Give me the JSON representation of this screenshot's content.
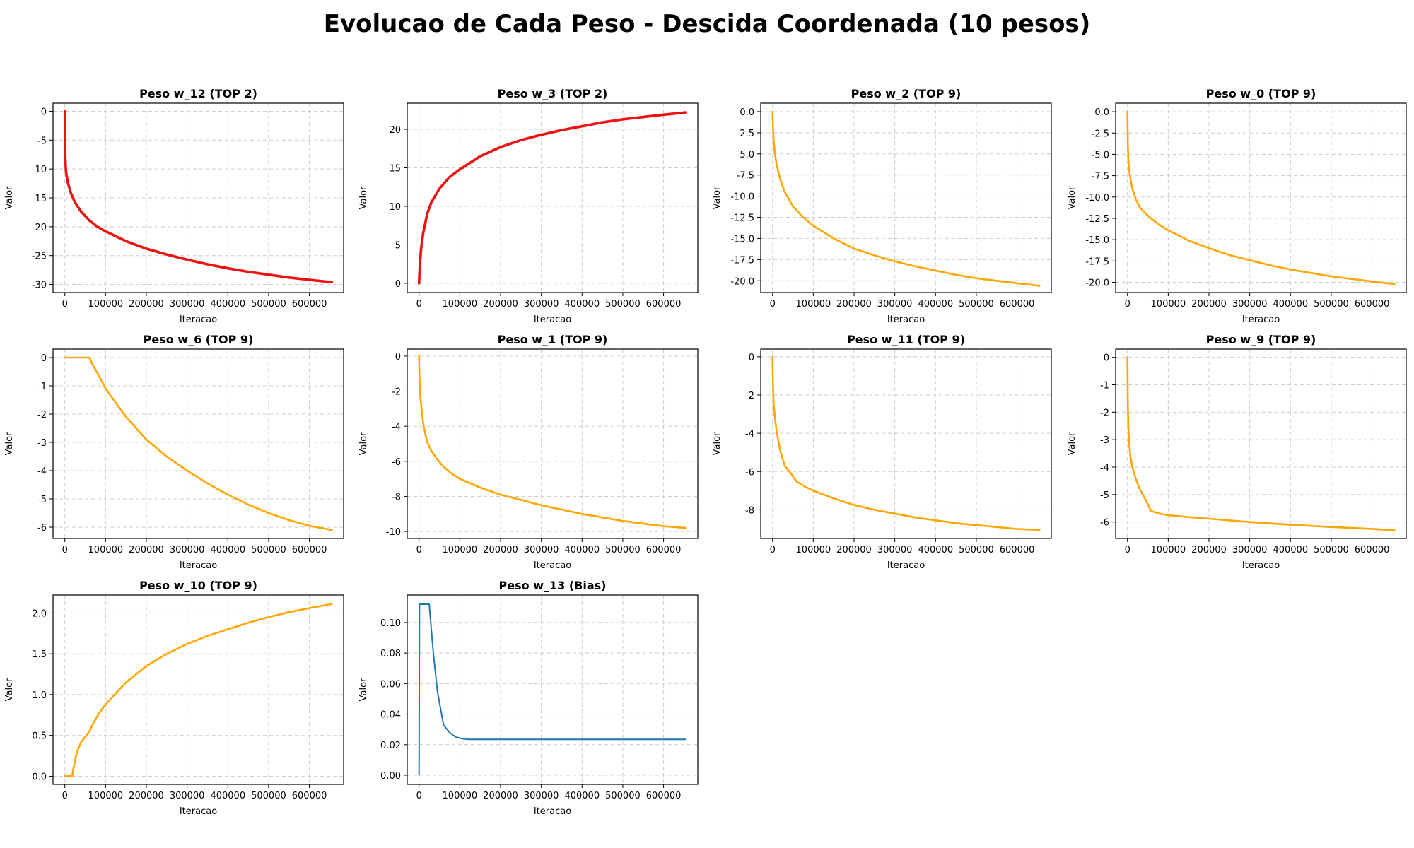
{
  "figure": {
    "title": "Evolucao de Cada Peso - Descida Coordenada (10 pesos)"
  },
  "chart_data": [
    {
      "type": "line",
      "title": "Peso w_12 (TOP 2)",
      "xlabel": "Iteracao",
      "ylabel": "Valor",
      "color": "#ee1111",
      "line_width": "thick",
      "xlim": [
        -29000,
        684000
      ],
      "ylim": [
        -31.4,
        1.4
      ],
      "xticks": [
        0,
        100000,
        200000,
        300000,
        400000,
        500000,
        600000
      ],
      "yticks": [
        0,
        -5,
        -10,
        -15,
        -20,
        -25,
        -30
      ],
      "grid": true,
      "x": [
        0,
        1000,
        2000,
        3000,
        5000,
        8000,
        15000,
        25000,
        40000,
        60000,
        80000,
        100000,
        150000,
        200000,
        250000,
        300000,
        350000,
        400000,
        450000,
        500000,
        550000,
        600000,
        655000
      ],
      "y": [
        0,
        -8,
        -9.5,
        -10.5,
        -11.5,
        -12.5,
        -14.2,
        -15.8,
        -17.4,
        -18.9,
        -20.0,
        -20.8,
        -22.5,
        -23.8,
        -24.8,
        -25.7,
        -26.5,
        -27.2,
        -27.8,
        -28.3,
        -28.8,
        -29.2,
        -29.6
      ]
    },
    {
      "type": "line",
      "title": "Peso w_3 (TOP 2)",
      "xlabel": "Iteracao",
      "ylabel": "Valor",
      "color": "#ee1111",
      "line_width": "thick",
      "xlim": [
        -29000,
        684000
      ],
      "ylim": [
        -1.2,
        23.4
      ],
      "xticks": [
        0,
        100000,
        200000,
        300000,
        400000,
        500000,
        600000
      ],
      "yticks": [
        0,
        5,
        10,
        15,
        20
      ],
      "grid": true,
      "x": [
        0,
        2000,
        5000,
        10000,
        20000,
        30000,
        50000,
        75000,
        100000,
        150000,
        200000,
        250000,
        300000,
        350000,
        400000,
        450000,
        500000,
        550000,
        600000,
        655000
      ],
      "y": [
        0,
        2.5,
        4.5,
        6.5,
        9.0,
        10.5,
        12.3,
        13.8,
        14.8,
        16.5,
        17.7,
        18.6,
        19.3,
        19.9,
        20.4,
        20.9,
        21.3,
        21.6,
        21.9,
        22.2
      ]
    },
    {
      "type": "line",
      "title": "Peso w_2 (TOP 9)",
      "xlabel": "Iteracao",
      "ylabel": "Valor",
      "color": "#ffa500",
      "line_width": "normal",
      "xlim": [
        -29000,
        684000
      ],
      "ylim": [
        -21.4,
        1.0
      ],
      "xticks": [
        0,
        100000,
        200000,
        300000,
        400000,
        500000,
        600000
      ],
      "yticks": [
        0.0,
        -2.5,
        -5.0,
        -7.5,
        -10.0,
        -12.5,
        -15.0,
        -17.5,
        -20.0
      ],
      "grid": true,
      "x": [
        0,
        1000,
        3000,
        6000,
        10000,
        20000,
        30000,
        50000,
        75000,
        100000,
        150000,
        200000,
        250000,
        300000,
        350000,
        400000,
        450000,
        500000,
        550000,
        600000,
        655000
      ],
      "y": [
        0,
        -2.0,
        -3.5,
        -5.0,
        -6.3,
        -8.2,
        -9.5,
        -11.2,
        -12.5,
        -13.5,
        -15.0,
        -16.2,
        -17.0,
        -17.7,
        -18.3,
        -18.8,
        -19.3,
        -19.7,
        -20.0,
        -20.3,
        -20.6
      ]
    },
    {
      "type": "line",
      "title": "Peso w_0 (TOP 9)",
      "xlabel": "Iteracao",
      "ylabel": "Valor",
      "color": "#ffa500",
      "line_width": "normal",
      "xlim": [
        -29000,
        684000
      ],
      "ylim": [
        -21.2,
        1.0
      ],
      "xticks": [
        0,
        100000,
        200000,
        300000,
        400000,
        500000,
        600000
      ],
      "yticks": [
        0.0,
        -2.5,
        -5.0,
        -7.5,
        -10.0,
        -12.5,
        -15.0,
        -17.5,
        -20.0
      ],
      "grid": true,
      "x": [
        0,
        1000,
        2000,
        4000,
        7000,
        12000,
        20000,
        30000,
        45000,
        60000,
        80000,
        100000,
        150000,
        200000,
        250000,
        300000,
        350000,
        400000,
        450000,
        500000,
        550000,
        600000,
        655000
      ],
      "y": [
        0,
        -4.0,
        -5.5,
        -6.8,
        -7.8,
        -9.0,
        -10.2,
        -11.2,
        -12.0,
        -12.6,
        -13.3,
        -13.9,
        -15.1,
        -16.0,
        -16.8,
        -17.4,
        -18.0,
        -18.5,
        -18.9,
        -19.3,
        -19.6,
        -19.9,
        -20.2
      ]
    },
    {
      "type": "line",
      "title": "Peso w_6 (TOP 9)",
      "xlabel": "Iteracao",
      "ylabel": "Valor",
      "color": "#ffa500",
      "line_width": "normal",
      "xlim": [
        -29000,
        684000
      ],
      "ylim": [
        -6.4,
        0.3
      ],
      "xticks": [
        0,
        100000,
        200000,
        300000,
        400000,
        500000,
        600000
      ],
      "yticks": [
        0,
        -1,
        -2,
        -3,
        -4,
        -5,
        -6
      ],
      "grid": true,
      "x": [
        0,
        60000,
        70000,
        80000,
        100000,
        150000,
        200000,
        250000,
        300000,
        350000,
        400000,
        450000,
        500000,
        550000,
        600000,
        655000
      ],
      "y": [
        0,
        0,
        -0.3,
        -0.55,
        -1.1,
        -2.1,
        -2.9,
        -3.5,
        -4.0,
        -4.45,
        -4.85,
        -5.2,
        -5.5,
        -5.75,
        -5.95,
        -6.1
      ]
    },
    {
      "type": "line",
      "title": "Peso w_1 (TOP 9)",
      "xlabel": "Iteracao",
      "ylabel": "Valor",
      "color": "#ffa500",
      "line_width": "normal",
      "xlim": [
        -29000,
        684000
      ],
      "ylim": [
        -10.4,
        0.4
      ],
      "xticks": [
        0,
        100000,
        200000,
        300000,
        400000,
        500000,
        600000
      ],
      "yticks": [
        0,
        -2,
        -4,
        -6,
        -8,
        -10
      ],
      "grid": true,
      "x": [
        0,
        1000,
        3000,
        6000,
        10000,
        15000,
        20000,
        30000,
        45000,
        60000,
        80000,
        100000,
        150000,
        200000,
        250000,
        300000,
        350000,
        400000,
        450000,
        500000,
        550000,
        600000,
        655000
      ],
      "y": [
        0,
        -1.2,
        -2.2,
        -3.0,
        -3.8,
        -4.4,
        -4.9,
        -5.4,
        -5.9,
        -6.3,
        -6.7,
        -7.0,
        -7.5,
        -7.9,
        -8.2,
        -8.5,
        -8.75,
        -9.0,
        -9.2,
        -9.4,
        -9.55,
        -9.7,
        -9.8
      ]
    },
    {
      "type": "line",
      "title": "Peso w_11 (TOP 9)",
      "xlabel": "Iteracao",
      "ylabel": "Valor",
      "color": "#ffa500",
      "line_width": "normal",
      "xlim": [
        -29000,
        684000
      ],
      "ylim": [
        -9.5,
        0.4
      ],
      "xticks": [
        0,
        100000,
        200000,
        300000,
        400000,
        500000,
        600000
      ],
      "yticks": [
        0,
        -2,
        -4,
        -6,
        -8
      ],
      "grid": true,
      "x": [
        0,
        1000,
        3000,
        6000,
        10000,
        15000,
        20000,
        30000,
        45000,
        58000,
        80000,
        100000,
        150000,
        200000,
        250000,
        300000,
        350000,
        400000,
        450000,
        500000,
        550000,
        600000,
        655000
      ],
      "y": [
        0,
        -1.5,
        -2.5,
        -3.2,
        -3.9,
        -4.5,
        -5.0,
        -5.7,
        -6.1,
        -6.5,
        -6.8,
        -7.0,
        -7.4,
        -7.75,
        -8.0,
        -8.2,
        -8.4,
        -8.55,
        -8.7,
        -8.8,
        -8.9,
        -9.0,
        -9.05
      ]
    },
    {
      "type": "line",
      "title": "Peso w_9 (TOP 9)",
      "xlabel": "Iteracao",
      "ylabel": "Valor",
      "color": "#ffa500",
      "line_width": "normal",
      "xlim": [
        -29000,
        684000
      ],
      "ylim": [
        -6.6,
        0.3
      ],
      "xticks": [
        0,
        100000,
        200000,
        300000,
        400000,
        500000,
        600000
      ],
      "yticks": [
        0,
        -1,
        -2,
        -3,
        -4,
        -5,
        -6
      ],
      "grid": true,
      "x": [
        0,
        1000,
        2000,
        4000,
        7000,
        12000,
        20000,
        30000,
        45000,
        58000,
        80000,
        100000,
        150000,
        200000,
        300000,
        400000,
        500000,
        600000,
        655000
      ],
      "y": [
        0,
        -1.8,
        -2.5,
        -3.1,
        -3.6,
        -4.0,
        -4.4,
        -4.8,
        -5.2,
        -5.6,
        -5.7,
        -5.75,
        -5.82,
        -5.88,
        -6.0,
        -6.1,
        -6.18,
        -6.25,
        -6.3
      ]
    },
    {
      "type": "line",
      "title": "Peso w_10 (TOP 9)",
      "xlabel": "Iteracao",
      "ylabel": "Valor",
      "color": "#ffa500",
      "line_width": "normal",
      "xlim": [
        -29000,
        684000
      ],
      "ylim": [
        -0.1,
        2.22
      ],
      "xticks": [
        0,
        100000,
        200000,
        300000,
        400000,
        500000,
        600000
      ],
      "yticks": [
        0.0,
        0.5,
        1.0,
        1.5,
        2.0
      ],
      "grid": true,
      "x": [
        0,
        18000,
        22000,
        30000,
        40000,
        50000,
        60000,
        70000,
        85000,
        100000,
        150000,
        200000,
        250000,
        300000,
        350000,
        400000,
        450000,
        500000,
        550000,
        600000,
        655000
      ],
      "y": [
        0,
        0,
        0.12,
        0.3,
        0.42,
        0.48,
        0.55,
        0.65,
        0.78,
        0.88,
        1.15,
        1.35,
        1.5,
        1.62,
        1.72,
        1.8,
        1.88,
        1.95,
        2.01,
        2.06,
        2.11
      ]
    },
    {
      "type": "line",
      "title": "Peso w_13 (Bias)",
      "xlabel": "Iteracao",
      "ylabel": "Valor",
      "color": "#1f77b4",
      "line_width": "thin",
      "xlim": [
        -29000,
        684000
      ],
      "ylim": [
        -0.006,
        0.118
      ],
      "xticks": [
        0,
        100000,
        200000,
        300000,
        400000,
        500000,
        600000
      ],
      "yticks": [
        0.0,
        0.02,
        0.04,
        0.06,
        0.08,
        0.1
      ],
      "grid": true,
      "x": [
        0,
        1000,
        25000,
        35000,
        45000,
        60000,
        75000,
        90000,
        105000,
        120000,
        200000,
        655000
      ],
      "y": [
        0,
        0.112,
        0.112,
        0.08,
        0.055,
        0.033,
        0.028,
        0.025,
        0.024,
        0.0235,
        0.0235,
        0.0235
      ]
    }
  ]
}
